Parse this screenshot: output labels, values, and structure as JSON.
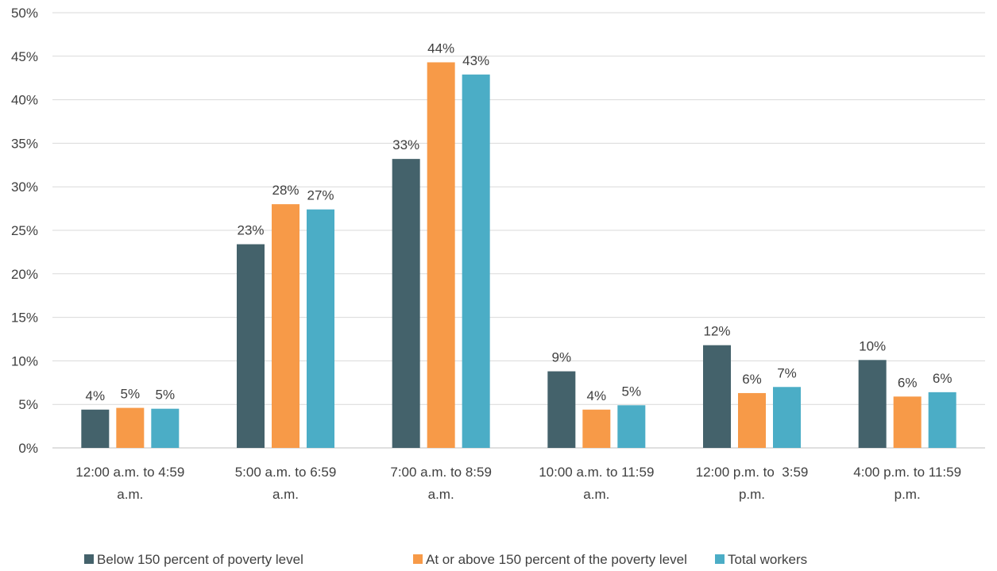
{
  "chart_data": {
    "type": "bar",
    "title": "",
    "xlabel": "",
    "ylabel": "",
    "ylim": [
      0,
      50
    ],
    "yticks": [
      0,
      5,
      10,
      15,
      20,
      25,
      30,
      35,
      40,
      45,
      50
    ],
    "ytick_labels": [
      "0%",
      "5%",
      "10%",
      "15%",
      "20%",
      "25%",
      "30%",
      "35%",
      "40%",
      "45%",
      "50%"
    ],
    "grid": true,
    "legend_position": "bottom",
    "categories": [
      [
        "12:00 a.m. to 4:59",
        "a.m."
      ],
      [
        "5:00 a.m. to 6:59",
        "a.m."
      ],
      [
        "7:00 a.m. to 8:59",
        "a.m."
      ],
      [
        "10:00 a.m. to 11:59",
        "a.m."
      ],
      [
        "12:00 p.m. to  3:59",
        "p.m."
      ],
      [
        "4:00 p.m. to 11:59",
        "p.m."
      ]
    ],
    "series": [
      {
        "name": "Below 150 percent of poverty level",
        "color": "#44626b",
        "values": [
          4.4,
          23.4,
          33.2,
          8.8,
          11.8,
          10.1
        ],
        "labels": [
          "4%",
          "23%",
          "33%",
          "9%",
          "12%",
          "10%"
        ]
      },
      {
        "name": "At or above 150 percent of the poverty level",
        "color": "#f79a48",
        "values": [
          4.6,
          28.0,
          44.3,
          4.4,
          6.3,
          5.9
        ],
        "labels": [
          "5%",
          "28%",
          "44%",
          "4%",
          "6%",
          "6%"
        ]
      },
      {
        "name": "Total workers",
        "color": "#4badc6",
        "values": [
          4.5,
          27.4,
          42.9,
          4.9,
          7.0,
          6.4
        ],
        "labels": [
          "5%",
          "27%",
          "43%",
          "5%",
          "7%",
          "6%"
        ]
      }
    ]
  }
}
